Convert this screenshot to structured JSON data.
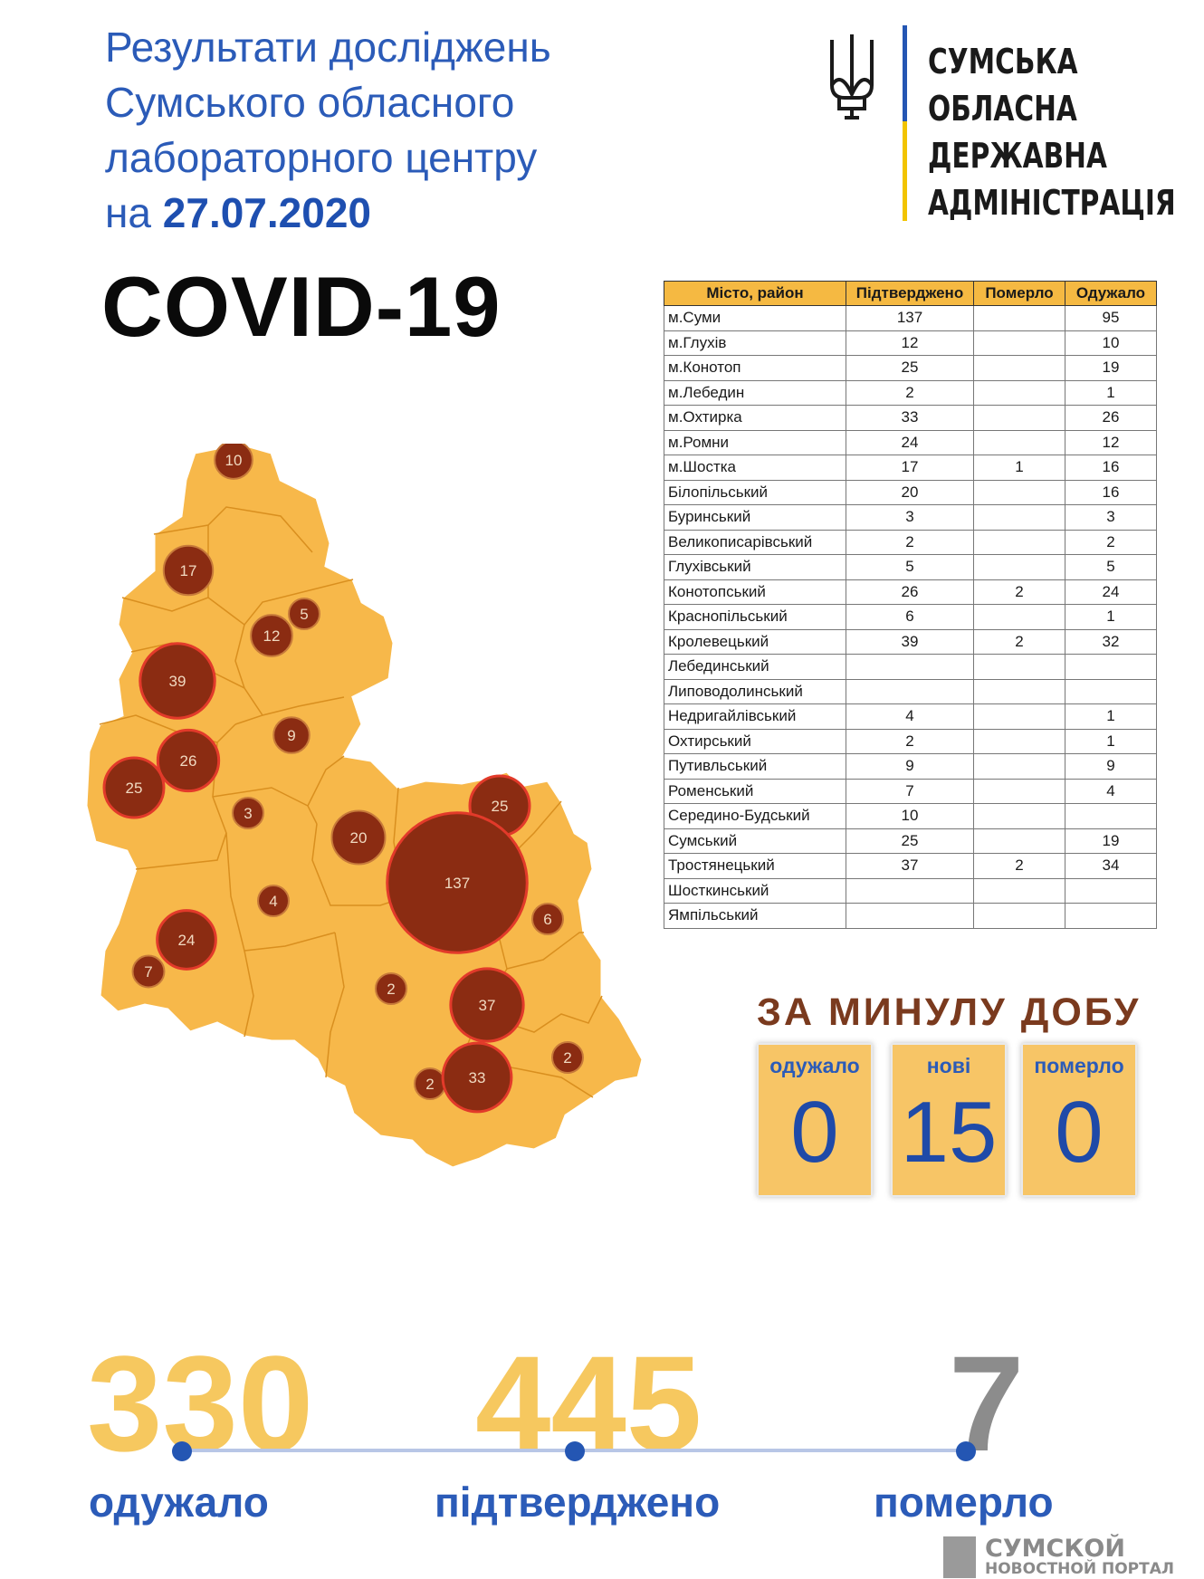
{
  "header": {
    "title_lines": [
      "Результати досліджень",
      "Сумського обласного",
      "лабораторного центру"
    ],
    "date_prefix": "на",
    "date": "27.07.2020",
    "covid": "COVID-19"
  },
  "logo": {
    "lines": [
      "СУМСЬКА",
      "ОБЛАСНА",
      "ДЕРЖАВНА",
      "АДМІНІСТРАЦІЯ"
    ],
    "colors": {
      "blue": "#2456b3",
      "yellow": "#f2c400"
    }
  },
  "table": {
    "headers": [
      "Місто, район",
      "Підтверджено",
      "Померло",
      "Одужало"
    ],
    "rows": [
      [
        "м.Суми",
        "137",
        "",
        "95"
      ],
      [
        "м.Глухів",
        "12",
        "",
        "10"
      ],
      [
        "м.Конотоп",
        "25",
        "",
        "19"
      ],
      [
        "м.Лебедин",
        "2",
        "",
        "1"
      ],
      [
        "м.Охтирка",
        "33",
        "",
        "26"
      ],
      [
        "м.Ромни",
        "24",
        "",
        "12"
      ],
      [
        "м.Шостка",
        "17",
        "1",
        "16"
      ],
      [
        "Білопільський",
        "20",
        "",
        "16"
      ],
      [
        "Буринський",
        "3",
        "",
        "3"
      ],
      [
        "Великописарівський",
        "2",
        "",
        "2"
      ],
      [
        "Глухівський",
        "5",
        "",
        "5"
      ],
      [
        "Конотопський",
        "26",
        "2",
        "24"
      ],
      [
        "Краснопільський",
        "6",
        "",
        "1"
      ],
      [
        "Кролевецький",
        "39",
        "2",
        "32"
      ],
      [
        "Лебединський",
        "",
        "",
        ""
      ],
      [
        "Липoводолинський",
        "",
        "",
        ""
      ],
      [
        "Недригайлівський",
        "4",
        "",
        "1"
      ],
      [
        "Охтирський",
        "2",
        "",
        "1"
      ],
      [
        "Путивльський",
        "9",
        "",
        "9"
      ],
      [
        "Роменський",
        "7",
        "",
        "4"
      ],
      [
        "Середино-Будський",
        "10",
        "",
        ""
      ],
      [
        "Сумський",
        "25",
        "",
        "19"
      ],
      [
        "Тростянецький",
        "37",
        "2",
        "34"
      ],
      [
        "Шосткинський",
        "",
        "",
        ""
      ],
      [
        "Ямпільський",
        "",
        "",
        ""
      ]
    ]
  },
  "chart_data": {
    "type": "bubble-map",
    "region_color": "#f7b84a",
    "bubble_color": "#8b2c12",
    "bubbles": [
      {
        "label": "10",
        "value": 10
      },
      {
        "label": "17",
        "value": 17
      },
      {
        "label": "5",
        "value": 5
      },
      {
        "label": "12",
        "value": 12
      },
      {
        "label": "39",
        "value": 39
      },
      {
        "label": "9",
        "value": 9
      },
      {
        "label": "26",
        "value": 26
      },
      {
        "label": "25",
        "value": 25
      },
      {
        "label": "3",
        "value": 3
      },
      {
        "label": "20",
        "value": 20
      },
      {
        "label": "25",
        "value": 25
      },
      {
        "label": "137",
        "value": 137
      },
      {
        "label": "4",
        "value": 4
      },
      {
        "label": "6",
        "value": 6
      },
      {
        "label": "24",
        "value": 24
      },
      {
        "label": "7",
        "value": 7
      },
      {
        "label": "2",
        "value": 2
      },
      {
        "label": "37",
        "value": 37
      },
      {
        "label": "2",
        "value": 2
      },
      {
        "label": "2",
        "value": 2
      },
      {
        "label": "33",
        "value": 33
      }
    ]
  },
  "daily": {
    "title": "ЗА МИНУЛУ ДОБУ",
    "items": [
      {
        "label": "одужало",
        "value": "0"
      },
      {
        "label": "нові",
        "value": "15"
      },
      {
        "label": "померло",
        "value": "0"
      }
    ]
  },
  "totals": {
    "recovered": {
      "value": "330",
      "label": "одужало"
    },
    "confirmed": {
      "value": "445",
      "label": "підтверджено"
    },
    "deaths": {
      "value": "7",
      "label": "померло"
    }
  },
  "footer": {
    "line1": "СУМСКОЙ",
    "line2": "НОВОСТНОЙ ПОРТАЛ"
  }
}
